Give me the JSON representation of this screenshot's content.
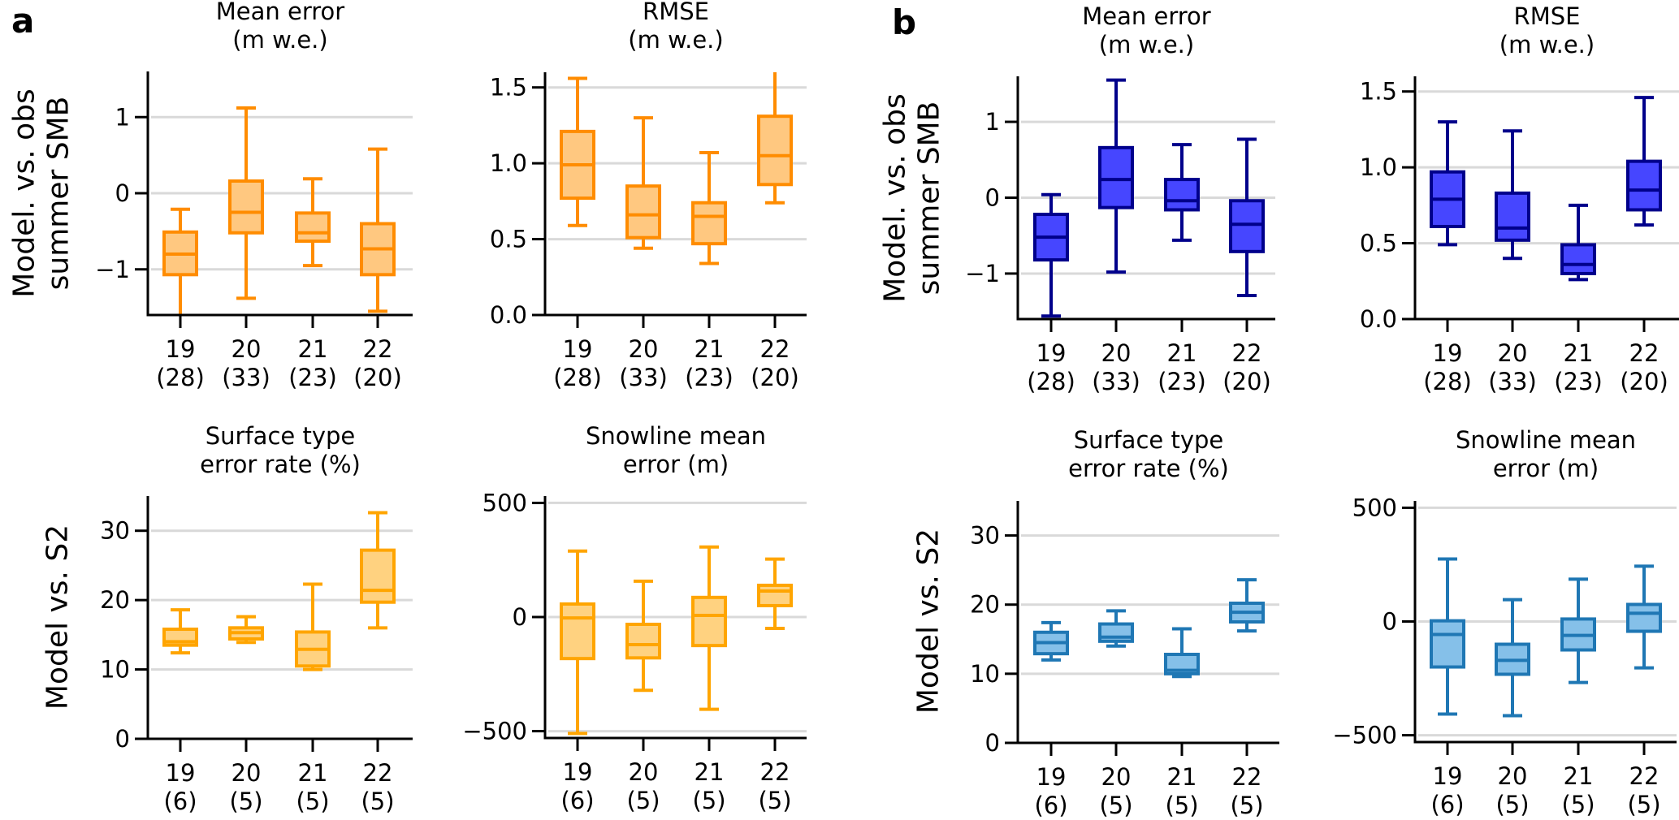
{
  "chart_data": [
    {
      "id": "a-mean-error",
      "panel": "a",
      "type": "boxplot",
      "title": [
        "Mean error",
        "(m w.e.)"
      ],
      "ylabel": [
        "Model. vs. obs",
        "summer SMB"
      ],
      "ylim": [
        -1.6,
        1.6
      ],
      "yticks": [
        {
          "value": -1,
          "label": "−1"
        },
        {
          "value": 0,
          "label": "0"
        },
        {
          "value": 1,
          "label": "1"
        }
      ],
      "grid": true,
      "categories": [
        "19",
        "20",
        "21",
        "22"
      ],
      "counts": [
        "(28)",
        "(33)",
        "(23)",
        "(20)"
      ],
      "style": "orange-dark",
      "boxes": [
        {
          "whislo": -1.75,
          "q1": -1.07,
          "med": -0.8,
          "q3": -0.51,
          "whishi": -0.21
        },
        {
          "whislo": -1.38,
          "q1": -0.52,
          "med": -0.25,
          "q3": 0.16,
          "whishi": 1.12
        },
        {
          "whislo": -0.95,
          "q1": -0.63,
          "med": -0.52,
          "q3": -0.26,
          "whishi": 0.19
        },
        {
          "whislo": -1.55,
          "q1": -1.07,
          "med": -0.73,
          "q3": -0.4,
          "whishi": 0.58
        }
      ]
    },
    {
      "id": "a-rmse",
      "panel": "a",
      "type": "boxplot",
      "title": [
        "RMSE",
        "(m w.e.)"
      ],
      "ylabel": null,
      "ylim": [
        0,
        1.6
      ],
      "yticks": [
        {
          "value": 0,
          "label": "0.0"
        },
        {
          "value": 0.5,
          "label": "0.5"
        },
        {
          "value": 1.0,
          "label": "1.0"
        },
        {
          "value": 1.5,
          "label": "1.5"
        }
      ],
      "grid": true,
      "categories": [
        "19",
        "20",
        "21",
        "22"
      ],
      "counts": [
        "(28)",
        "(33)",
        "(23)",
        "(20)"
      ],
      "style": "orange-dark",
      "boxes": [
        {
          "whislo": 0.59,
          "q1": 0.77,
          "med": 0.99,
          "q3": 1.21,
          "whishi": 1.56
        },
        {
          "whislo": 0.44,
          "q1": 0.51,
          "med": 0.66,
          "q3": 0.85,
          "whishi": 1.3
        },
        {
          "whislo": 0.34,
          "q1": 0.47,
          "med": 0.65,
          "q3": 0.74,
          "whishi": 1.07
        },
        {
          "whislo": 0.74,
          "q1": 0.86,
          "med": 1.05,
          "q3": 1.31,
          "whishi": 1.75
        }
      ]
    },
    {
      "id": "a-surface-type",
      "panel": "a",
      "type": "boxplot",
      "title": [
        "Surface type",
        "error rate (%)"
      ],
      "ylabel": [
        "Model vs. S2"
      ],
      "ylim": [
        0,
        35
      ],
      "yticks": [
        {
          "value": 0,
          "label": "0"
        },
        {
          "value": 10,
          "label": "10"
        },
        {
          "value": 20,
          "label": "20"
        },
        {
          "value": 30,
          "label": "30"
        }
      ],
      "grid": true,
      "categories": [
        "19",
        "20",
        "21",
        "22"
      ],
      "counts": [
        "(6)",
        "(5)",
        "(5)",
        "(5)"
      ],
      "style": "orange-light",
      "boxes": [
        {
          "whislo": 12.4,
          "q1": 13.5,
          "med": 14.0,
          "q3": 15.8,
          "whishi": 18.6
        },
        {
          "whislo": 13.9,
          "q1": 14.4,
          "med": 15.3,
          "q3": 16.0,
          "whishi": 17.6
        },
        {
          "whislo": 10.0,
          "q1": 10.5,
          "med": 12.9,
          "q3": 15.4,
          "whishi": 22.3
        },
        {
          "whislo": 16.0,
          "q1": 19.7,
          "med": 21.4,
          "q3": 27.2,
          "whishi": 32.6
        }
      ]
    },
    {
      "id": "a-snowline",
      "panel": "a",
      "type": "boxplot",
      "title": [
        "Snowline mean",
        "error (m)"
      ],
      "ylabel": null,
      "ylim": [
        -530,
        530
      ],
      "yticks": [
        {
          "value": -500,
          "label": "−500"
        },
        {
          "value": 0,
          "label": "0"
        },
        {
          "value": 500,
          "label": "500"
        }
      ],
      "grid": true,
      "categories": [
        "19",
        "20",
        "21",
        "22"
      ],
      "counts": [
        "(6)",
        "(5)",
        "(5)",
        "(5)"
      ],
      "style": "orange-light",
      "boxes": [
        {
          "whislo": -510,
          "q1": -182,
          "med": -4,
          "q3": 57,
          "whishi": 289
        },
        {
          "whislo": -321,
          "q1": -179,
          "med": -121,
          "q3": -32,
          "whishi": 157
        },
        {
          "whislo": -404,
          "q1": -125,
          "med": 7,
          "q3": 86,
          "whishi": 307
        },
        {
          "whislo": -50,
          "q1": 50,
          "med": 114,
          "q3": 139,
          "whishi": 254
        }
      ]
    },
    {
      "id": "b-mean-error",
      "panel": "b",
      "type": "boxplot",
      "title": [
        "Mean error",
        "(m w.e.)"
      ],
      "ylabel": [
        "Model. vs. obs",
        "summer SMB"
      ],
      "ylim": [
        -1.6,
        1.6
      ],
      "yticks": [
        {
          "value": -1,
          "label": "−1"
        },
        {
          "value": 0,
          "label": "0"
        },
        {
          "value": 1,
          "label": "1"
        }
      ],
      "grid": true,
      "categories": [
        "19",
        "20",
        "21",
        "22"
      ],
      "counts": [
        "(28)",
        "(33)",
        "(23)",
        "(20)"
      ],
      "style": "blue-dark",
      "boxes": [
        {
          "whislo": -1.56,
          "q1": -0.82,
          "med": -0.52,
          "q3": -0.22,
          "whishi": 0.04
        },
        {
          "whislo": -0.98,
          "q1": -0.13,
          "med": 0.24,
          "q3": 0.66,
          "whishi": 1.55
        },
        {
          "whislo": -0.56,
          "q1": -0.16,
          "med": -0.04,
          "q3": 0.24,
          "whishi": 0.7
        },
        {
          "whislo": -1.29,
          "q1": -0.71,
          "med": -0.35,
          "q3": -0.04,
          "whishi": 0.77
        }
      ]
    },
    {
      "id": "b-rmse",
      "panel": "b",
      "type": "boxplot",
      "title": [
        "RMSE",
        "(m w.e.)"
      ],
      "ylabel": null,
      "ylim": [
        0,
        1.6
      ],
      "yticks": [
        {
          "value": 0,
          "label": "0.0"
        },
        {
          "value": 0.5,
          "label": "0.5"
        },
        {
          "value": 1.0,
          "label": "1.0"
        },
        {
          "value": 1.5,
          "label": "1.5"
        }
      ],
      "grid": true,
      "categories": [
        "19",
        "20",
        "21",
        "22"
      ],
      "counts": [
        "(28)",
        "(33)",
        "(23)",
        "(20)"
      ],
      "style": "blue-dark",
      "boxes": [
        {
          "whislo": 0.49,
          "q1": 0.61,
          "med": 0.79,
          "q3": 0.97,
          "whishi": 1.3
        },
        {
          "whislo": 0.4,
          "q1": 0.52,
          "med": 0.6,
          "q3": 0.83,
          "whishi": 1.24
        },
        {
          "whislo": 0.26,
          "q1": 0.3,
          "med": 0.36,
          "q3": 0.49,
          "whishi": 0.75
        },
        {
          "whislo": 0.62,
          "q1": 0.72,
          "med": 0.85,
          "q3": 1.04,
          "whishi": 1.46
        }
      ]
    },
    {
      "id": "b-surface-type",
      "panel": "b",
      "type": "boxplot",
      "title": [
        "Surface type",
        "error rate (%)"
      ],
      "ylabel": [
        "Model vs. S2"
      ],
      "ylim": [
        0,
        35
      ],
      "yticks": [
        {
          "value": 0,
          "label": "0"
        },
        {
          "value": 10,
          "label": "10"
        },
        {
          "value": 20,
          "label": "20"
        },
        {
          "value": 30,
          "label": "30"
        }
      ],
      "grid": true,
      "categories": [
        "19",
        "20",
        "21",
        "22"
      ],
      "counts": [
        "(6)",
        "(5)",
        "(5)",
        "(5)"
      ],
      "style": "blue-light",
      "boxes": [
        {
          "whislo": 12.0,
          "q1": 12.9,
          "med": 14.5,
          "q3": 16.0,
          "whishi": 17.4
        },
        {
          "whislo": 14.0,
          "q1": 14.7,
          "med": 15.3,
          "q3": 17.2,
          "whishi": 19.1
        },
        {
          "whislo": 9.6,
          "q1": 10.0,
          "med": 10.5,
          "q3": 12.8,
          "whishi": 16.5
        },
        {
          "whislo": 16.2,
          "q1": 17.5,
          "med": 18.9,
          "q3": 20.2,
          "whishi": 23.6
        }
      ]
    },
    {
      "id": "b-snowline",
      "panel": "b",
      "type": "boxplot",
      "title": [
        "Snowline mean",
        "error (m)"
      ],
      "ylabel": null,
      "ylim": [
        -530,
        530
      ],
      "yticks": [
        {
          "value": -500,
          "label": "−500"
        },
        {
          "value": 0,
          "label": "0"
        },
        {
          "value": 500,
          "label": "500"
        }
      ],
      "grid": true,
      "categories": [
        "19",
        "20",
        "21",
        "22"
      ],
      "counts": [
        "(6)",
        "(5)",
        "(5)",
        "(5)"
      ],
      "style": "blue-light",
      "boxes": [
        {
          "whislo": -407,
          "q1": -200,
          "med": -57,
          "q3": 3,
          "whishi": 275
        },
        {
          "whislo": -414,
          "q1": -232,
          "med": -171,
          "q3": -100,
          "whishi": 96
        },
        {
          "whislo": -268,
          "q1": -125,
          "med": -61,
          "q3": 11,
          "whishi": 186
        },
        {
          "whislo": -204,
          "q1": -43,
          "med": 36,
          "q3": 75,
          "whishi": 243
        }
      ]
    }
  ],
  "panel_labels": {
    "a": "a",
    "b": "b"
  },
  "styles": {
    "orange-dark": {
      "edge": "#ff8c00",
      "fill": "#ffc880"
    },
    "orange-light": {
      "edge": "#ffa500",
      "fill": "#ffd280"
    },
    "blue-dark": {
      "edge": "#00008b",
      "fill": "#4646ff"
    },
    "blue-light": {
      "edge": "#1f77b4",
      "fill": "#85c0e9"
    }
  },
  "gridline_color": "#d9d9d9"
}
